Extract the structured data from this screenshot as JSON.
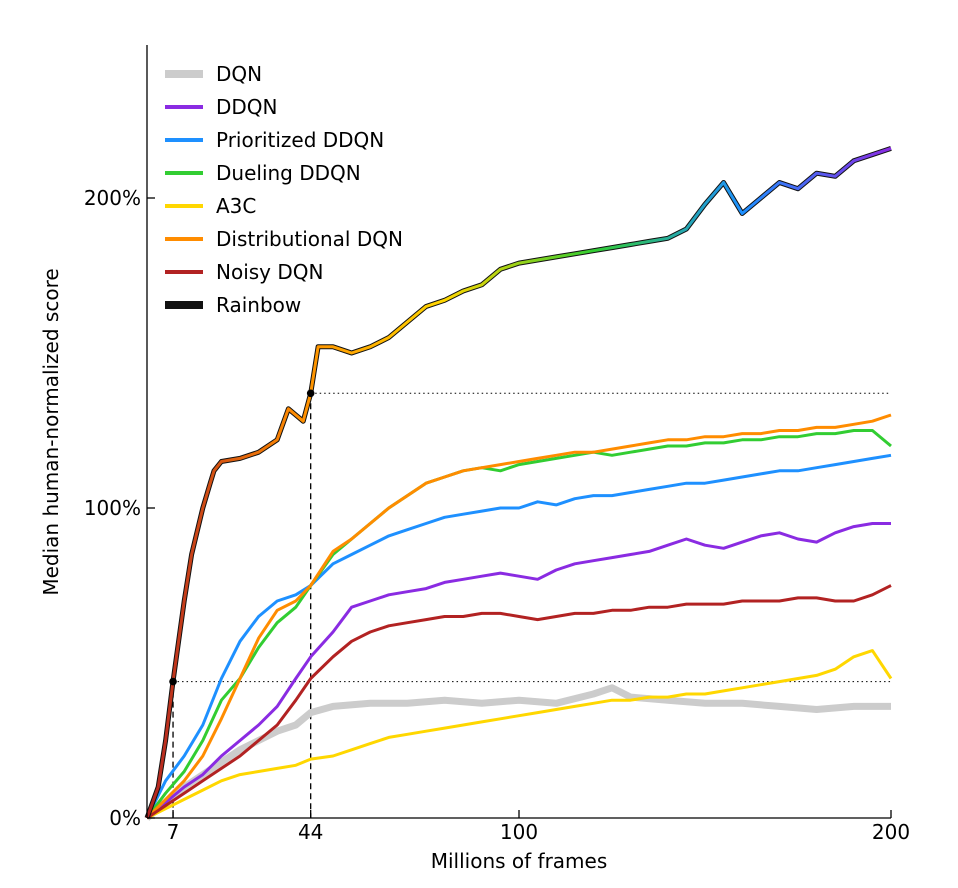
{
  "chart_data": {
    "type": "line",
    "title": "",
    "xlabel": "Millions of frames",
    "ylabel": "Median human-normalized score",
    "xlim": [
      0,
      200
    ],
    "ylim": [
      0,
      200
    ],
    "xticks": [
      7,
      44,
      100,
      200
    ],
    "xtick_labels": [
      "7",
      "44",
      "100",
      "200"
    ],
    "yticks": [
      0,
      100,
      200
    ],
    "ytick_labels": [
      "0%",
      "100%",
      "200%"
    ],
    "grid": false,
    "legend_position": "top-left",
    "reference_lines": [
      {
        "x": 7,
        "y": 44
      },
      {
        "x": 44,
        "y": 137
      }
    ],
    "series": [
      {
        "name": "DQN",
        "color": "#cccccc",
        "x": [
          0,
          5,
          10,
          15,
          20,
          25,
          30,
          35,
          40,
          44,
          50,
          60,
          70,
          80,
          90,
          100,
          110,
          120,
          125,
          130,
          140,
          150,
          160,
          170,
          180,
          190,
          200
        ],
        "values": [
          0,
          5,
          10,
          14,
          18,
          22,
          25,
          28,
          30,
          34,
          36,
          37,
          37,
          38,
          37,
          38,
          37,
          40,
          42,
          39,
          38,
          37,
          37,
          36,
          35,
          36,
          36
        ]
      },
      {
        "name": "DDQN",
        "color": "#8a2be2",
        "x": [
          0,
          5,
          10,
          15,
          20,
          25,
          30,
          35,
          40,
          44,
          50,
          55,
          60,
          65,
          70,
          75,
          80,
          85,
          90,
          95,
          100,
          105,
          110,
          115,
          120,
          125,
          130,
          135,
          140,
          145,
          150,
          155,
          160,
          165,
          170,
          175,
          180,
          185,
          190,
          195,
          200
        ],
        "values": [
          0,
          5,
          10,
          14,
          20,
          25,
          30,
          36,
          45,
          52,
          60,
          68,
          70,
          72,
          73,
          74,
          76,
          77,
          78,
          79,
          78,
          77,
          80,
          82,
          83,
          84,
          85,
          86,
          88,
          90,
          88,
          87,
          89,
          91,
          92,
          90,
          89,
          92,
          94,
          95,
          95
        ]
      },
      {
        "name": "Prioritized DDQN",
        "color": "#1e90ff",
        "x": [
          0,
          5,
          10,
          15,
          20,
          25,
          30,
          35,
          40,
          44,
          50,
          55,
          60,
          65,
          70,
          75,
          80,
          85,
          90,
          95,
          100,
          105,
          110,
          115,
          120,
          125,
          130,
          135,
          140,
          145,
          150,
          155,
          160,
          165,
          170,
          175,
          180,
          185,
          190,
          195,
          200
        ],
        "values": [
          0,
          12,
          20,
          30,
          45,
          57,
          65,
          70,
          72,
          75,
          82,
          85,
          88,
          91,
          93,
          95,
          97,
          98,
          99,
          100,
          100,
          102,
          101,
          103,
          104,
          104,
          105,
          106,
          107,
          108,
          108,
          109,
          110,
          111,
          112,
          112,
          113,
          114,
          115,
          116,
          117
        ]
      },
      {
        "name": "Dueling DDQN",
        "color": "#32cd32",
        "x": [
          0,
          5,
          10,
          15,
          20,
          25,
          30,
          35,
          40,
          44,
          50,
          55,
          60,
          65,
          70,
          75,
          80,
          85,
          90,
          95,
          100,
          105,
          110,
          115,
          120,
          125,
          130,
          135,
          140,
          145,
          150,
          155,
          160,
          165,
          170,
          175,
          180,
          185,
          190,
          195,
          200
        ],
        "values": [
          0,
          8,
          15,
          25,
          38,
          45,
          55,
          63,
          68,
          75,
          85,
          90,
          95,
          100,
          104,
          108,
          110,
          112,
          113,
          112,
          114,
          115,
          116,
          117,
          118,
          117,
          118,
          119,
          120,
          120,
          121,
          121,
          122,
          122,
          123,
          123,
          124,
          124,
          125,
          125,
          120
        ]
      },
      {
        "name": "A3C",
        "color": "#ffd700",
        "x": [
          0,
          5,
          10,
          15,
          20,
          25,
          30,
          35,
          40,
          44,
          50,
          55,
          60,
          65,
          70,
          75,
          80,
          85,
          90,
          95,
          100,
          105,
          110,
          115,
          120,
          125,
          130,
          135,
          140,
          145,
          150,
          155,
          160,
          165,
          170,
          175,
          180,
          185,
          190,
          195,
          200
        ],
        "values": [
          0,
          3,
          6,
          9,
          12,
          14,
          15,
          16,
          17,
          19,
          20,
          22,
          24,
          26,
          27,
          28,
          29,
          30,
          31,
          32,
          33,
          34,
          35,
          36,
          37,
          38,
          38,
          39,
          39,
          40,
          40,
          41,
          42,
          43,
          44,
          45,
          46,
          48,
          52,
          54,
          45
        ]
      },
      {
        "name": "Distributional DQN",
        "color": "#ff8c00",
        "x": [
          0,
          5,
          10,
          15,
          20,
          25,
          30,
          35,
          40,
          44,
          50,
          55,
          60,
          65,
          70,
          75,
          80,
          85,
          90,
          95,
          100,
          105,
          110,
          115,
          120,
          125,
          130,
          135,
          140,
          145,
          150,
          155,
          160,
          165,
          170,
          175,
          180,
          185,
          190,
          195,
          200
        ],
        "values": [
          0,
          6,
          12,
          20,
          32,
          45,
          58,
          67,
          70,
          75,
          86,
          90,
          95,
          100,
          104,
          108,
          110,
          112,
          113,
          114,
          115,
          116,
          117,
          118,
          118,
          119,
          120,
          121,
          122,
          122,
          123,
          123,
          124,
          124,
          125,
          125,
          126,
          126,
          127,
          128,
          130
        ]
      },
      {
        "name": "Noisy DQN",
        "color": "#b22222",
        "x": [
          0,
          5,
          10,
          15,
          20,
          25,
          30,
          35,
          40,
          44,
          50,
          55,
          60,
          65,
          70,
          75,
          80,
          85,
          90,
          95,
          100,
          105,
          110,
          115,
          120,
          125,
          130,
          135,
          140,
          145,
          150,
          155,
          160,
          165,
          170,
          175,
          180,
          185,
          190,
          195,
          200
        ],
        "values": [
          0,
          4,
          8,
          12,
          16,
          20,
          25,
          30,
          38,
          45,
          52,
          57,
          60,
          62,
          63,
          64,
          65,
          65,
          66,
          66,
          65,
          64,
          65,
          66,
          66,
          67,
          67,
          68,
          68,
          69,
          69,
          69,
          70,
          70,
          70,
          71,
          71,
          70,
          70,
          72,
          75
        ]
      },
      {
        "name": "Rainbow",
        "color": "rainbow",
        "x": [
          0,
          3,
          5,
          7,
          10,
          12,
          15,
          17,
          18,
          20,
          25,
          30,
          35,
          38,
          40,
          42,
          44,
          46,
          50,
          55,
          60,
          65,
          70,
          75,
          80,
          85,
          90,
          95,
          100,
          105,
          110,
          115,
          120,
          125,
          130,
          135,
          140,
          145,
          150,
          155,
          160,
          165,
          170,
          175,
          180,
          185,
          190,
          195,
          200
        ],
        "values": [
          0,
          10,
          25,
          44,
          70,
          85,
          100,
          108,
          112,
          115,
          116,
          118,
          122,
          132,
          130,
          128,
          137,
          152,
          152,
          150,
          152,
          155,
          160,
          165,
          167,
          170,
          172,
          177,
          179,
          180,
          181,
          182,
          183,
          184,
          185,
          186,
          187,
          190,
          198,
          205,
          195,
          200,
          205,
          203,
          208,
          207,
          212,
          214,
          216
        ]
      }
    ]
  }
}
